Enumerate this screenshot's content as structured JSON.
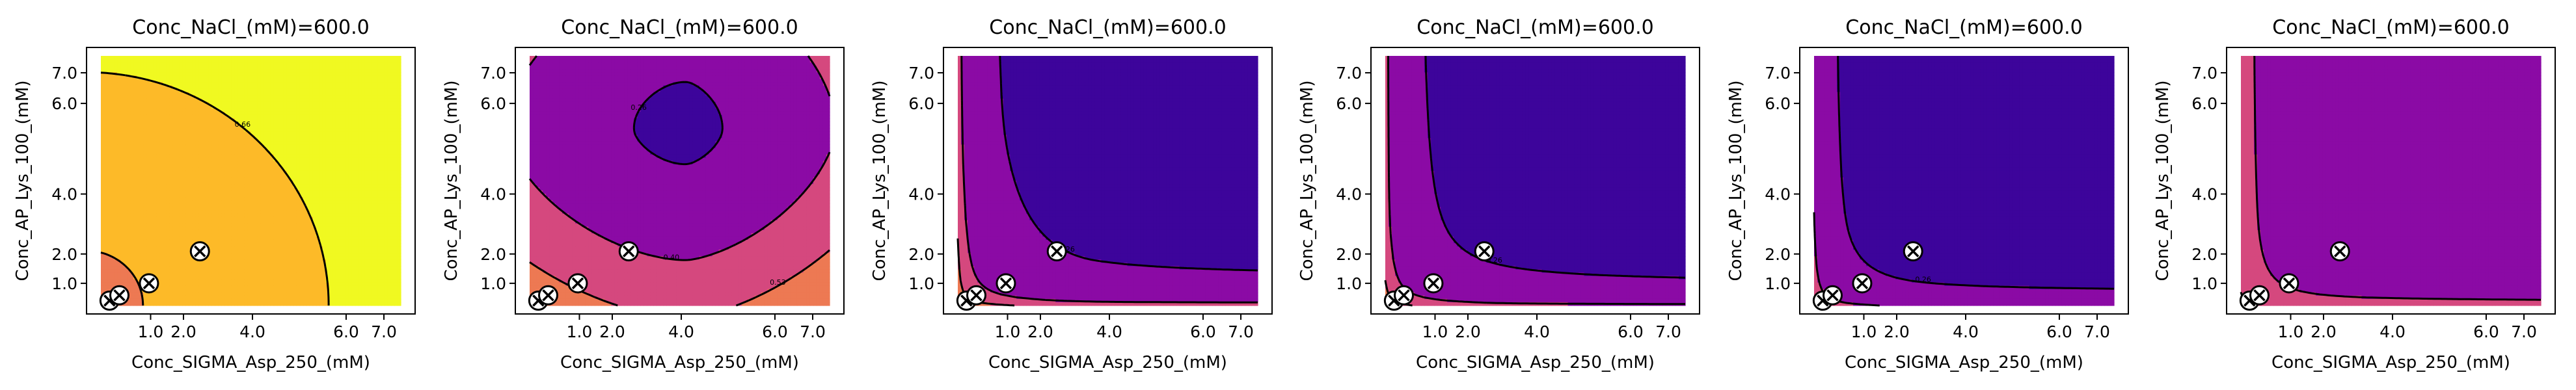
{
  "figure": {
    "panel_count": 6
  },
  "chart_data": [
    {
      "type": "contour",
      "title": "Conc_NaCl_(mM)=600.0",
      "xlabel": "Conc_SIGMA_Asp_250_(mM)",
      "ylabel": "Conc_AP_Lys_100_(mM)",
      "xticks": [
        "1.0",
        "2.0",
        "4.0",
        "6.0",
        "7.0"
      ],
      "yticks": [
        "1.0",
        "2.0",
        "4.0",
        "6.0",
        "7.0"
      ],
      "xlim": [
        0.2,
        7.6
      ],
      "ylim": [
        0.2,
        7.6
      ],
      "levels": [
        0.53,
        0.66
      ],
      "level_labels": [
        "0.53",
        "0.66"
      ],
      "colors": [
        "#d5487e",
        "#ed7953",
        "#fdba28",
        "#f0f921"
      ],
      "points": [
        [
          0.5,
          0.5
        ],
        [
          0.75,
          0.65
        ],
        [
          1.2,
          0.9
        ],
        [
          2.5,
          1.6
        ]
      ]
    },
    {
      "type": "contour",
      "title": "Conc_NaCl_(mM)=600.0",
      "xlabel": "Conc_SIGMA_Asp_250_(mM)",
      "ylabel": "Conc_AP_Lys_100_(mM)",
      "xticks": [
        "1.0",
        "2.0",
        "4.0",
        "6.0",
        "7.0"
      ],
      "yticks": [
        "1.0",
        "2.0",
        "4.0",
        "6.0",
        "7.0"
      ],
      "xlim": [
        0.2,
        7.6
      ],
      "ylim": [
        0.2,
        7.6
      ],
      "levels": [
        0.26,
        0.4,
        0.53,
        0.66
      ],
      "level_labels": [
        "0.26",
        "0.40",
        "0.53",
        "0.66"
      ],
      "colors": [
        "#3d049b",
        "#8b0aa5",
        "#d5487e",
        "#ed7953",
        "#fdba28"
      ],
      "points": [
        [
          0.5,
          0.5
        ],
        [
          0.75,
          0.65
        ],
        [
          1.2,
          0.9
        ],
        [
          2.5,
          1.6
        ]
      ]
    },
    {
      "type": "contour",
      "title": "Conc_NaCl_(mM)=600.0",
      "xlabel": "Conc_SIGMA_Asp_250_(mM)",
      "ylabel": "Conc_AP_Lys_100_(mM)",
      "xticks": [
        "1.0",
        "2.0",
        "4.0",
        "6.0",
        "7.0"
      ],
      "yticks": [
        "1.0",
        "2.0",
        "4.0",
        "6.0",
        "7.0"
      ],
      "xlim": [
        0.2,
        7.6
      ],
      "ylim": [
        0.2,
        7.6
      ],
      "levels": [
        0.26,
        0.4,
        0.53,
        0.66
      ],
      "level_labels": [
        "0.26",
        "0.40",
        "0.53",
        "0.66"
      ],
      "colors": [
        "#3d049b",
        "#8b0aa5",
        "#d5487e",
        "#ed7953",
        "#fdba28"
      ],
      "points": [
        [
          0.5,
          0.5
        ],
        [
          0.75,
          0.65
        ],
        [
          1.2,
          0.9
        ],
        [
          2.5,
          1.6
        ]
      ]
    },
    {
      "type": "contour",
      "title": "Conc_NaCl_(mM)=600.0",
      "xlabel": "Conc_SIGMA_Asp_250_(mM)",
      "ylabel": "Conc_AP_Lys_100_(mM)",
      "xticks": [
        "1.0",
        "2.0",
        "4.0",
        "6.0",
        "7.0"
      ],
      "yticks": [
        "1.0",
        "2.0",
        "4.0",
        "6.0",
        "7.0"
      ],
      "xlim": [
        0.2,
        7.6
      ],
      "ylim": [
        0.2,
        7.6
      ],
      "levels": [
        0.26,
        0.4,
        0.53
      ],
      "level_labels": [
        "0.26",
        "0.40",
        "0.53"
      ],
      "colors": [
        "#3d049b",
        "#8b0aa5",
        "#d5487e",
        "#ed7953"
      ],
      "points": [
        [
          0.5,
          0.5
        ],
        [
          0.75,
          0.65
        ],
        [
          1.2,
          0.9
        ],
        [
          2.5,
          1.6
        ]
      ]
    },
    {
      "type": "contour",
      "title": "Conc_NaCl_(mM)=600.0",
      "xlabel": "Conc_SIGMA_Asp_250_(mM)",
      "ylabel": "Conc_AP_Lys_100_(mM)",
      "xticks": [
        "1.0",
        "2.0",
        "4.0",
        "6.0",
        "7.0"
      ],
      "yticks": [
        "1.0",
        "2.0",
        "4.0",
        "6.0",
        "7.0"
      ],
      "xlim": [
        0.2,
        7.6
      ],
      "ylim": [
        0.2,
        7.6
      ],
      "levels": [
        0.26,
        0.4,
        0.53
      ],
      "level_labels": [
        "0.26",
        "0.40",
        "0.53"
      ],
      "colors": [
        "#3d049b",
        "#8b0aa5",
        "#d5487e",
        "#ed7953"
      ],
      "points": [
        [
          0.5,
          0.5
        ],
        [
          0.75,
          0.65
        ],
        [
          1.2,
          0.9
        ],
        [
          2.5,
          1.6
        ]
      ]
    },
    {
      "type": "contour",
      "title": "Conc_NaCl_(mM)=600.0",
      "xlabel": "Conc_SIGMA_Asp_250_(mM)",
      "ylabel": "Conc_AP_Lys_100_(mM)",
      "xticks": [
        "1.0",
        "2.0",
        "4.0",
        "6.0",
        "7.0"
      ],
      "yticks": [
        "1.0",
        "2.0",
        "4.0",
        "6.0",
        "7.0"
      ],
      "xlim": [
        0.2,
        7.6
      ],
      "ylim": [
        0.2,
        7.6
      ],
      "levels": [
        0.26,
        0.4
      ],
      "level_labels": [
        "0.26",
        "0.40"
      ],
      "colors": [
        "#3d049b",
        "#8b0aa5",
        "#d5487e",
        "#ed7953"
      ],
      "points": [
        [
          0.5,
          0.5
        ],
        [
          0.75,
          0.65
        ],
        [
          1.2,
          0.9
        ],
        [
          2.5,
          1.6
        ]
      ]
    }
  ]
}
